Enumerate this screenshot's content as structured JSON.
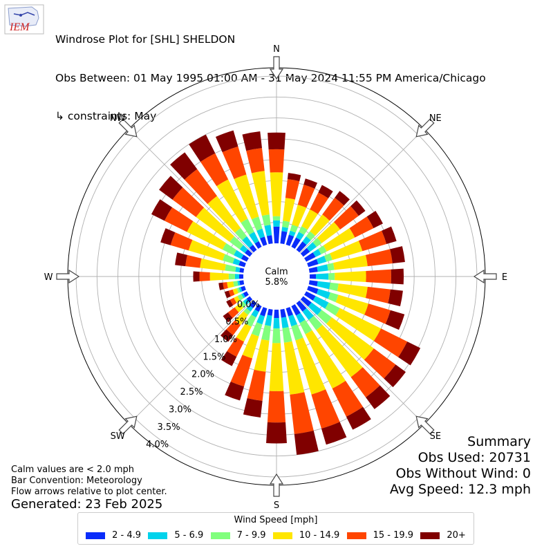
{
  "header": {
    "logo_text": "IEM",
    "title_line1": "Windrose Plot for [SHL] SHELDON",
    "title_line2": "Obs Between: 01 May 1995 01:00 AM - 31 May 2024 11:55 PM America/Chicago",
    "title_line3": "↳ constraints: May"
  },
  "notes": {
    "calm": "Calm values are < 2.0 mph",
    "convention": "Bar Convention: Meteorology",
    "flow": "Flow arrows relative to plot center.",
    "generated": "Generated: 23 Feb 2025"
  },
  "summary": {
    "title": "Summary",
    "obs_used": "Obs Used: 20731",
    "obs_without_wind": "Obs Without Wind: 0",
    "avg_speed": "Avg Speed: 12.3 mph"
  },
  "chart_data": {
    "type": "windrose",
    "calm_label": "Calm",
    "calm_value": "5.8%",
    "radial_ticks": [
      "0.0%",
      "0.5%",
      "1.0%",
      "1.5%",
      "2.0%",
      "2.5%",
      "3.0%",
      "3.5%",
      "4.0%"
    ],
    "radial_range": [
      0,
      4.2
    ],
    "compass_labels": [
      "N",
      "NE",
      "E",
      "SE",
      "S",
      "SW",
      "W",
      "NW"
    ],
    "legend_title": "Wind Speed [mph]",
    "bins": [
      {
        "label": "2 - 4.9",
        "color": "#0a2cfa"
      },
      {
        "label": "5 - 6.9",
        "color": "#00d3ec"
      },
      {
        "label": "7 - 9.9",
        "color": "#80ff7d"
      },
      {
        "label": "10 - 14.9",
        "color": "#ffe600"
      },
      {
        "label": "15 - 19.9",
        "color": "#ff4500"
      },
      {
        "label": "20+",
        "color": "#800000"
      }
    ],
    "directions": [
      0,
      10,
      20,
      30,
      40,
      50,
      60,
      70,
      80,
      90,
      100,
      110,
      120,
      130,
      140,
      150,
      160,
      170,
      180,
      190,
      200,
      210,
      220,
      230,
      240,
      250,
      260,
      270,
      280,
      290,
      300,
      310,
      320,
      330,
      340,
      350
    ],
    "cumulative_percent": [
      [
        0.4,
        0.55,
        0.65,
        1.7,
        2.25,
        2.65
      ],
      [
        0.3,
        0.4,
        0.55,
        1.1,
        1.55,
        1.7
      ],
      [
        0.25,
        0.35,
        0.5,
        1.0,
        1.5,
        1.65
      ],
      [
        0.25,
        0.4,
        0.55,
        1.0,
        1.45,
        1.65
      ],
      [
        0.25,
        0.4,
        0.55,
        1.05,
        1.55,
        1.75
      ],
      [
        0.2,
        0.4,
        0.55,
        1.1,
        1.65,
        1.85
      ],
      [
        0.25,
        0.4,
        0.55,
        1.3,
        1.8,
        2.05
      ],
      [
        0.25,
        0.45,
        0.6,
        1.35,
        1.95,
        2.2
      ],
      [
        0.2,
        0.45,
        0.6,
        1.4,
        2.0,
        2.3
      ],
      [
        0.15,
        0.45,
        0.6,
        1.35,
        1.95,
        2.25
      ],
      [
        0.2,
        0.5,
        0.7,
        1.4,
        1.95,
        2.25
      ],
      [
        0.25,
        0.55,
        0.75,
        1.5,
        2.05,
        2.4
      ],
      [
        0.25,
        0.6,
        0.9,
        2.0,
        2.7,
        3.05
      ],
      [
        0.25,
        0.55,
        0.85,
        2.1,
        2.75,
        3.05
      ],
      [
        0.25,
        0.5,
        0.8,
        2.2,
        2.8,
        3.15
      ],
      [
        0.25,
        0.45,
        0.75,
        2.2,
        2.95,
        3.3
      ],
      [
        0.2,
        0.45,
        0.8,
        2.15,
        3.0,
        3.4
      ],
      [
        0.2,
        0.45,
        0.8,
        2.05,
        3.0,
        3.5
      ],
      [
        0.2,
        0.45,
        0.8,
        1.95,
        2.7,
        3.2
      ],
      [
        0.15,
        0.4,
        0.75,
        1.5,
        2.2,
        2.6
      ],
      [
        0.2,
        0.4,
        0.7,
        1.25,
        1.95,
        2.3
      ],
      [
        0.15,
        0.3,
        0.55,
        0.95,
        1.35,
        1.6
      ],
      [
        0.15,
        0.25,
        0.35,
        0.65,
        0.95,
        1.15
      ],
      [
        0.1,
        0.2,
        0.3,
        0.45,
        0.65,
        0.8
      ],
      [
        0.1,
        0.15,
        0.25,
        0.35,
        0.45,
        0.55
      ],
      [
        0.1,
        0.15,
        0.2,
        0.3,
        0.4,
        0.5
      ],
      [
        0.1,
        0.15,
        0.25,
        0.4,
        0.5,
        0.6
      ],
      [
        0.1,
        0.2,
        0.35,
        0.8,
        1.05,
        1.2
      ],
      [
        0.1,
        0.2,
        0.45,
        1.05,
        1.4,
        1.65
      ],
      [
        0.15,
        0.3,
        0.55,
        1.4,
        1.85,
        2.1
      ],
      [
        0.15,
        0.35,
        0.65,
        1.6,
        2.2,
        2.55
      ],
      [
        0.15,
        0.3,
        0.6,
        1.6,
        2.3,
        2.7
      ],
      [
        0.15,
        0.4,
        0.65,
        1.6,
        2.4,
        2.9
      ],
      [
        0.15,
        0.4,
        0.75,
        1.8,
        2.5,
        3.0
      ],
      [
        0.2,
        0.4,
        0.7,
        1.75,
        2.45,
        2.85
      ],
      [
        0.2,
        0.45,
        0.7,
        1.75,
        2.3,
        2.7
      ]
    ]
  }
}
